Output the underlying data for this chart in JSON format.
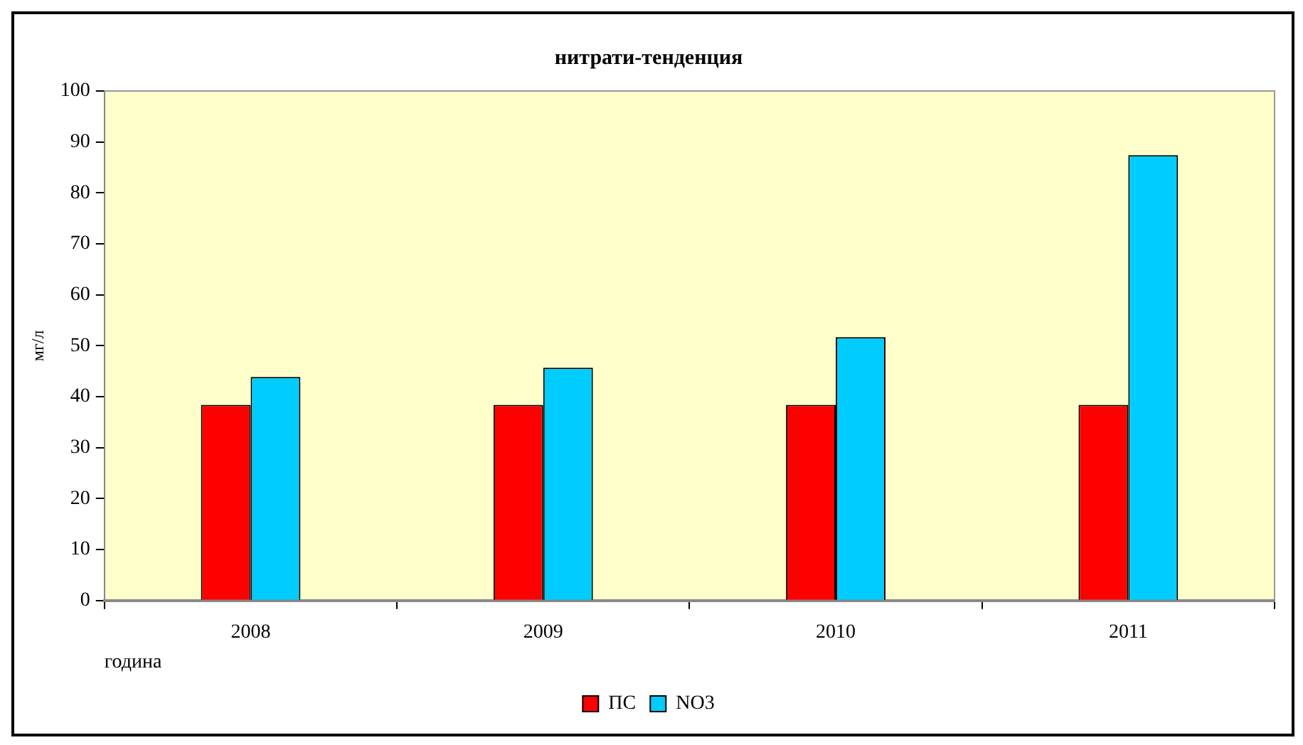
{
  "chart_data": {
    "type": "bar",
    "title": "нитрати-тенденция",
    "xlabel": "година",
    "ylabel": "мг/л",
    "categories": [
      "2008",
      "2009",
      "2010",
      "2011"
    ],
    "series": [
      {
        "name": "ПС",
        "color": "#ff0000",
        "values": [
          38.4,
          38.4,
          38.4,
          38.4
        ]
      },
      {
        "name": "NO3",
        "color": "#00ccff",
        "values": [
          43.9,
          45.7,
          51.7,
          87.4
        ]
      }
    ],
    "ylim": [
      0,
      100
    ],
    "yticks": [
      0,
      10,
      20,
      30,
      40,
      50,
      60,
      70,
      80,
      90,
      100
    ],
    "grid": false,
    "legend": "bottom"
  }
}
